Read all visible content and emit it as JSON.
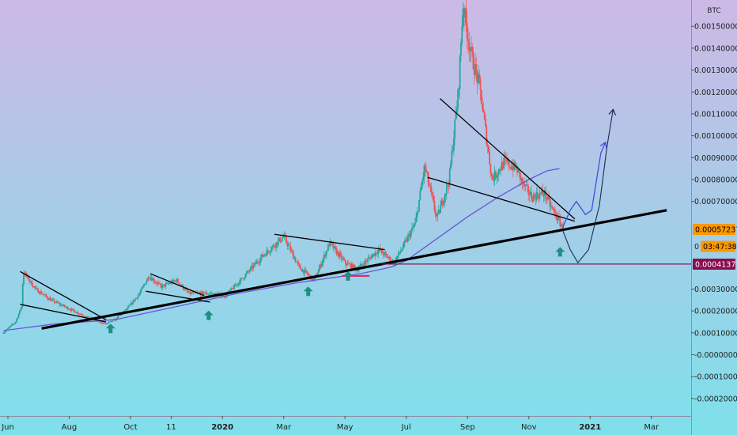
{
  "chart_data": {
    "type": "candlestick",
    "symbol": "BTC",
    "y_unit": "BTC",
    "ylim": [
      -0.00028,
      0.00162
    ],
    "y_ticks": [
      {
        "v": 0.0015,
        "label": "0.00150000"
      },
      {
        "v": 0.0014,
        "label": "0.00140000"
      },
      {
        "v": 0.0013,
        "label": "0.00130000"
      },
      {
        "v": 0.0012,
        "label": "0.00120000"
      },
      {
        "v": 0.0011,
        "label": "0.00110000"
      },
      {
        "v": 0.001,
        "label": "0.00100000"
      },
      {
        "v": 0.0009,
        "label": "0.00090000"
      },
      {
        "v": 0.0008,
        "label": "0.00080000"
      },
      {
        "v": 0.0007,
        "label": "0.00070000"
      },
      {
        "v": 0.0003,
        "label": "0.00030000"
      },
      {
        "v": 0.0002,
        "label": "0.00020000"
      },
      {
        "v": 0.0001,
        "label": "0.00010000"
      },
      {
        "v": 0.0,
        "label": "-0.00000000"
      },
      {
        "v": -0.0001,
        "label": "-0.00010000"
      },
      {
        "v": -0.0002,
        "label": "-0.00020000"
      }
    ],
    "x_ticks": [
      {
        "t": 0,
        "label": "Jun",
        "bold": false
      },
      {
        "t": 2,
        "label": "Aug",
        "bold": false
      },
      {
        "t": 4,
        "label": "Oct",
        "bold": false
      },
      {
        "t": 5.33,
        "label": "11",
        "bold": false
      },
      {
        "t": 7,
        "label": "2020",
        "bold": true
      },
      {
        "t": 9,
        "label": "Mar",
        "bold": false
      },
      {
        "t": 11,
        "label": "May",
        "bold": false
      },
      {
        "t": 13,
        "label": "Jul",
        "bold": false
      },
      {
        "t": 15,
        "label": "Sep",
        "bold": false
      },
      {
        "t": 17,
        "label": "Nov",
        "bold": false
      },
      {
        "t": 19,
        "label": "2021",
        "bold": true
      },
      {
        "t": 21,
        "label": "Mar",
        "bold": false
      }
    ],
    "price_key_points": [
      [
        -0.15,
        0.0001
      ],
      [
        0.25,
        0.00015
      ],
      [
        0.45,
        0.00022
      ],
      [
        0.5,
        0.00038
      ],
      [
        0.9,
        0.0003
      ],
      [
        1.4,
        0.00025
      ],
      [
        2.0,
        0.00021
      ],
      [
        2.6,
        0.00017
      ],
      [
        3.2,
        0.00014
      ],
      [
        3.5,
        0.00016
      ],
      [
        3.9,
        0.00021
      ],
      [
        4.3,
        0.00028
      ],
      [
        4.6,
        0.00036
      ],
      [
        5.0,
        0.00031
      ],
      [
        5.5,
        0.00034
      ],
      [
        5.9,
        0.00028
      ],
      [
        6.5,
        0.00028
      ],
      [
        7.1,
        0.00027
      ],
      [
        7.6,
        0.00034
      ],
      [
        8.3,
        0.00045
      ],
      [
        9.0,
        0.00054
      ],
      [
        9.5,
        0.0004
      ],
      [
        10.0,
        0.00034
      ],
      [
        10.5,
        0.00051
      ],
      [
        11.0,
        0.00042
      ],
      [
        11.4,
        0.00039
      ],
      [
        12.1,
        0.00048
      ],
      [
        12.6,
        0.00042
      ],
      [
        13.0,
        0.00052
      ],
      [
        13.3,
        0.0006
      ],
      [
        13.6,
        0.00086
      ],
      [
        14.0,
        0.00062
      ],
      [
        14.4,
        0.0008
      ],
      [
        14.7,
        0.0012
      ],
      [
        14.85,
        0.0016
      ],
      [
        15.1,
        0.00138
      ],
      [
        15.4,
        0.00122
      ],
      [
        15.8,
        0.0008
      ],
      [
        16.2,
        0.00088
      ],
      [
        16.6,
        0.00085
      ],
      [
        16.8,
        0.00078
      ],
      [
        17.1,
        0.00072
      ],
      [
        17.5,
        0.00074
      ],
      [
        17.7,
        0.00068
      ],
      [
        17.95,
        0.00062
      ],
      [
        18.1,
        0.00058
      ],
      [
        18.12,
        0.000572
      ]
    ],
    "series": [
      {
        "name": "",
        "style": "moving-average",
        "color": "#6b56d6",
        "points": [
          [
            -0.15,
            0.00011
          ],
          [
            1.5,
            0.00014
          ],
          [
            3.5,
            0.00016
          ],
          [
            5.5,
            0.00022
          ],
          [
            7.5,
            0.00028
          ],
          [
            9.5,
            0.00033
          ],
          [
            11.5,
            0.00037
          ],
          [
            12.5,
            0.0004
          ],
          [
            13.0,
            0.00043
          ],
          [
            14.0,
            0.00053
          ],
          [
            15.0,
            0.00063
          ],
          [
            16.0,
            0.00072
          ],
          [
            17.0,
            0.0008
          ],
          [
            17.6,
            0.00084
          ],
          [
            18.0,
            0.00085
          ]
        ]
      }
    ],
    "annotations": {
      "main_trendline": {
        "from": [
          1.1,
          0.00012
        ],
        "to": [
          21.5,
          0.00066
        ],
        "color": "#000000"
      },
      "trendlines": [
        {
          "from": [
            0.4,
            0.00038
          ],
          "to": [
            3.2,
            0.00016
          ]
        },
        {
          "from": [
            0.4,
            0.00023
          ],
          "to": [
            3.2,
            0.00015
          ]
        },
        {
          "from": [
            4.65,
            0.00037
          ],
          "to": [
            6.4,
            0.00027
          ]
        },
        {
          "from": [
            4.5,
            0.00029
          ],
          "to": [
            6.6,
            0.00024
          ]
        },
        {
          "from": [
            8.7,
            0.00055
          ],
          "to": [
            12.3,
            0.00048
          ]
        },
        {
          "from": [
            14.1,
            0.00117
          ],
          "to": [
            18.5,
            0.00062
          ]
        },
        {
          "from": [
            13.7,
            0.00081
          ],
          "to": [
            18.5,
            0.00061
          ]
        }
      ],
      "horizontal_level": {
        "price": 0.000414,
        "from_t": 12.2,
        "color": "#7a1f4f"
      },
      "short_level": {
        "price": 0.00036,
        "from_t": 10.9,
        "to_t": 11.8,
        "color": "#e91e63"
      },
      "up_arrows": [
        [
          3.35,
          0.00012
        ],
        [
          6.55,
          0.00018
        ],
        [
          9.8,
          0.00029
        ],
        [
          11.1,
          0.00036
        ],
        [
          18.02,
          0.00047
        ]
      ],
      "projection_blue": [
        [
          18.1,
          0.00058
        ],
        [
          18.35,
          0.00066
        ],
        [
          18.55,
          0.0007
        ],
        [
          18.85,
          0.00064
        ],
        [
          19.05,
          0.00066
        ],
        [
          19.35,
          0.00092
        ],
        [
          19.5,
          0.00097
        ]
      ],
      "projection_black": [
        [
          18.1,
          0.00057
        ],
        [
          18.35,
          0.00048
        ],
        [
          18.6,
          0.00042
        ],
        [
          18.95,
          0.00048
        ],
        [
          19.3,
          0.00068
        ],
        [
          19.55,
          0.00095
        ],
        [
          19.75,
          0.00112
        ]
      ]
    },
    "price_labels": [
      {
        "value": 0.00057237,
        "text": "0.00057237",
        "bg": "#ff9800",
        "fg": "#000000"
      },
      {
        "value": 0.000495,
        "text": "03:47:38",
        "bg": "#ff9800",
        "fg": "#000000",
        "prefix": "0"
      },
      {
        "value": 0.00041371,
        "text": "0.00041371",
        "bg": "#880e4f",
        "fg": "#ffffff"
      }
    ],
    "colors": {
      "up": "#26a69a",
      "down": "#ef5350",
      "bg_top": "#cdb9e6",
      "bg_bottom": "#7ee0ea"
    },
    "grid": false
  }
}
